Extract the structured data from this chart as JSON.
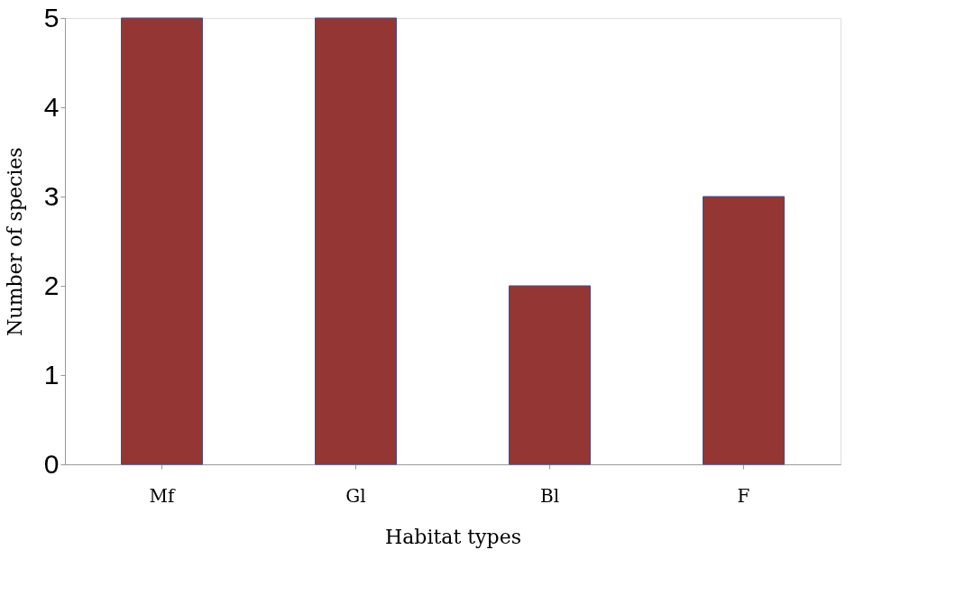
{
  "chart_data": {
    "type": "bar",
    "xlabel": "Habitat types",
    "ylabel": "Number of species",
    "categories": [
      "Mf",
      "Gl",
      "Bl",
      "F"
    ],
    "values": [
      5,
      5,
      2,
      3
    ],
    "color": "#943634",
    "ylim": [
      0,
      5
    ],
    "yticks": [
      0,
      1,
      2,
      3,
      4,
      5
    ],
    "grid": false
  }
}
